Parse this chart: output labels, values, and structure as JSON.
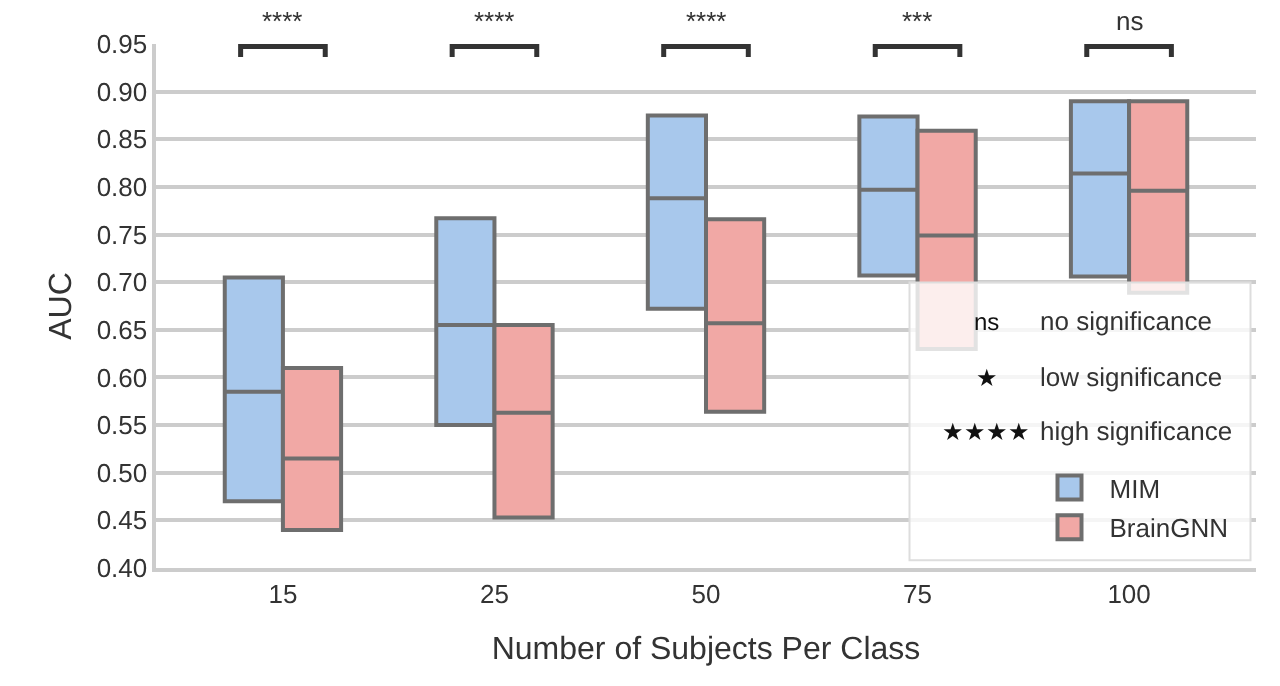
{
  "chart_data": {
    "type": "box",
    "xlabel": "Number of Subjects Per Class",
    "ylabel": "AUC",
    "categories": [
      "15",
      "25",
      "50",
      "75",
      "100"
    ],
    "ylim": [
      0.4,
      0.95
    ],
    "yticks": [
      {
        "value": 0.4,
        "label": "0.40"
      },
      {
        "value": 0.45,
        "label": "0.45"
      },
      {
        "value": 0.5,
        "label": "0.50"
      },
      {
        "value": 0.55,
        "label": "0.55"
      },
      {
        "value": 0.6,
        "label": "0.60"
      },
      {
        "value": 0.65,
        "label": "0.65"
      },
      {
        "value": 0.7,
        "label": "0.70"
      },
      {
        "value": 0.75,
        "label": "0.75"
      },
      {
        "value": 0.8,
        "label": "0.80"
      },
      {
        "value": 0.85,
        "label": "0.85"
      },
      {
        "value": 0.9,
        "label": "0.90"
      },
      {
        "value": 0.95,
        "label": "0.95"
      }
    ],
    "grid": "y",
    "legend": "bottom right",
    "series": [
      {
        "name": "MIM",
        "color": "#a8c8ec",
        "boxes": [
          {
            "q1": 0.47,
            "median": 0.585,
            "q3": 0.705
          },
          {
            "q1": 0.55,
            "median": 0.655,
            "q3": 0.767
          },
          {
            "q1": 0.672,
            "median": 0.788,
            "q3": 0.875
          },
          {
            "q1": 0.707,
            "median": 0.797,
            "q3": 0.874
          },
          {
            "q1": 0.706,
            "median": 0.814,
            "q3": 0.89
          }
        ]
      },
      {
        "name": "BrainGNN",
        "color": "#f1a8a5",
        "boxes": [
          {
            "q1": 0.44,
            "median": 0.515,
            "q3": 0.61
          },
          {
            "q1": 0.453,
            "median": 0.563,
            "q3": 0.655
          },
          {
            "q1": 0.564,
            "median": 0.657,
            "q3": 0.766
          },
          {
            "q1": 0.63,
            "median": 0.749,
            "q3": 0.859
          },
          {
            "q1": 0.689,
            "median": 0.796,
            "q3": 0.89
          }
        ]
      }
    ],
    "annotations": [
      "****",
      "****",
      "****",
      "***",
      "ns",
      "ns",
      "no significance",
      "★",
      "low significance",
      "★★★★",
      "high significance"
    ]
  }
}
